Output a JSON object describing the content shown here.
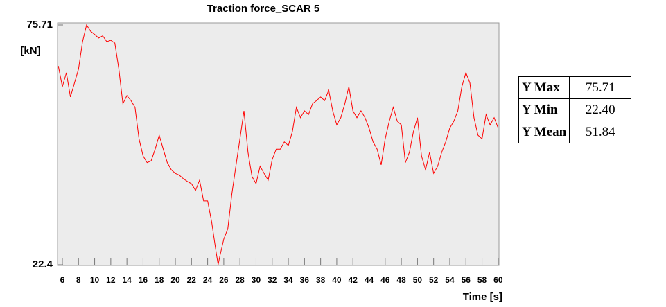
{
  "chart_data": {
    "type": "line",
    "title": "Traction force_SCAR 5",
    "ylabel": "[kN]",
    "xlabel": "Time [s]",
    "xlim": [
      5.4,
      60.1
    ],
    "ylim": [
      22.4,
      75.71
    ],
    "xticks": [
      6,
      8,
      10,
      12,
      14,
      16,
      18,
      20,
      22,
      24,
      26,
      28,
      30,
      32,
      34,
      36,
      38,
      40,
      42,
      44,
      46,
      48,
      50,
      52,
      54,
      56,
      58,
      60
    ],
    "yticks": [
      22.4,
      75.71
    ],
    "series": [
      {
        "name": "Traction force_SCAR 5",
        "color": "#ff0000",
        "x": [
          5.5,
          6,
          6.5,
          7,
          7.5,
          8,
          8.5,
          9,
          9.5,
          10,
          10.5,
          11,
          11.5,
          12,
          12.5,
          13,
          13.5,
          14,
          14.5,
          15,
          15.5,
          16,
          16.5,
          17,
          17.5,
          18,
          18.5,
          19,
          19.5,
          20,
          20.5,
          21,
          21.5,
          22,
          22.5,
          23,
          23.5,
          24,
          24.5,
          25,
          25.3,
          25.5,
          26,
          26.5,
          27,
          27.5,
          28,
          28.5,
          29,
          29.5,
          30,
          30.5,
          31,
          31.5,
          32,
          32.5,
          33,
          33.5,
          34,
          34.5,
          35,
          35.5,
          36,
          36.5,
          37,
          37.5,
          38,
          38.5,
          39,
          39.5,
          40,
          40.5,
          41,
          41.5,
          42,
          42.5,
          43,
          43.5,
          44,
          44.5,
          45,
          45.5,
          46,
          46.5,
          47,
          47.5,
          48,
          48.5,
          49,
          49.5,
          50,
          50.5,
          51,
          51.5,
          52,
          52.5,
          53,
          53.5,
          54,
          54.5,
          55,
          55.5,
          56,
          56.5,
          57,
          57.5,
          58,
          58.5,
          59,
          59.5,
          60
        ],
        "values": [
          66.6,
          62.0,
          65.1,
          59.7,
          62.8,
          65.9,
          72.0,
          75.71,
          74.3,
          73.6,
          72.8,
          73.3,
          72.0,
          72.3,
          71.7,
          65.9,
          58.2,
          60.0,
          58.9,
          57.4,
          50.4,
          46.6,
          45.1,
          45.5,
          48.1,
          51.2,
          48.1,
          45.1,
          43.5,
          42.7,
          42.3,
          41.5,
          40.9,
          40.4,
          38.9,
          41.2,
          36.6,
          36.6,
          31.9,
          25.8,
          22.4,
          24.2,
          28.1,
          30.4,
          38.1,
          44.3,
          50.4,
          56.6,
          47.4,
          42.0,
          40.4,
          44.3,
          42.7,
          41.2,
          45.8,
          48.1,
          48.1,
          49.7,
          48.9,
          52.0,
          57.4,
          55.1,
          56.6,
          55.8,
          58.2,
          58.9,
          59.7,
          58.9,
          61.2,
          56.6,
          53.5,
          55.1,
          58.2,
          62.0,
          56.6,
          55.1,
          56.6,
          55.1,
          52.8,
          49.7,
          48.1,
          44.6,
          50.4,
          54.3,
          57.4,
          54.3,
          53.5,
          45.1,
          47.4,
          52.0,
          55.1,
          46.6,
          43.5,
          47.4,
          42.7,
          44.3,
          47.4,
          49.7,
          52.8,
          54.3,
          56.6,
          62.0,
          65.1,
          62.8,
          55.1,
          51.2,
          50.4,
          55.8,
          53.5,
          55.1,
          52.8
        ]
      }
    ]
  },
  "table": {
    "rows": [
      [
        "Y Max",
        "75.71"
      ],
      [
        "Y Min",
        "22.40"
      ],
      [
        "Y Mean",
        "51.84"
      ]
    ]
  }
}
